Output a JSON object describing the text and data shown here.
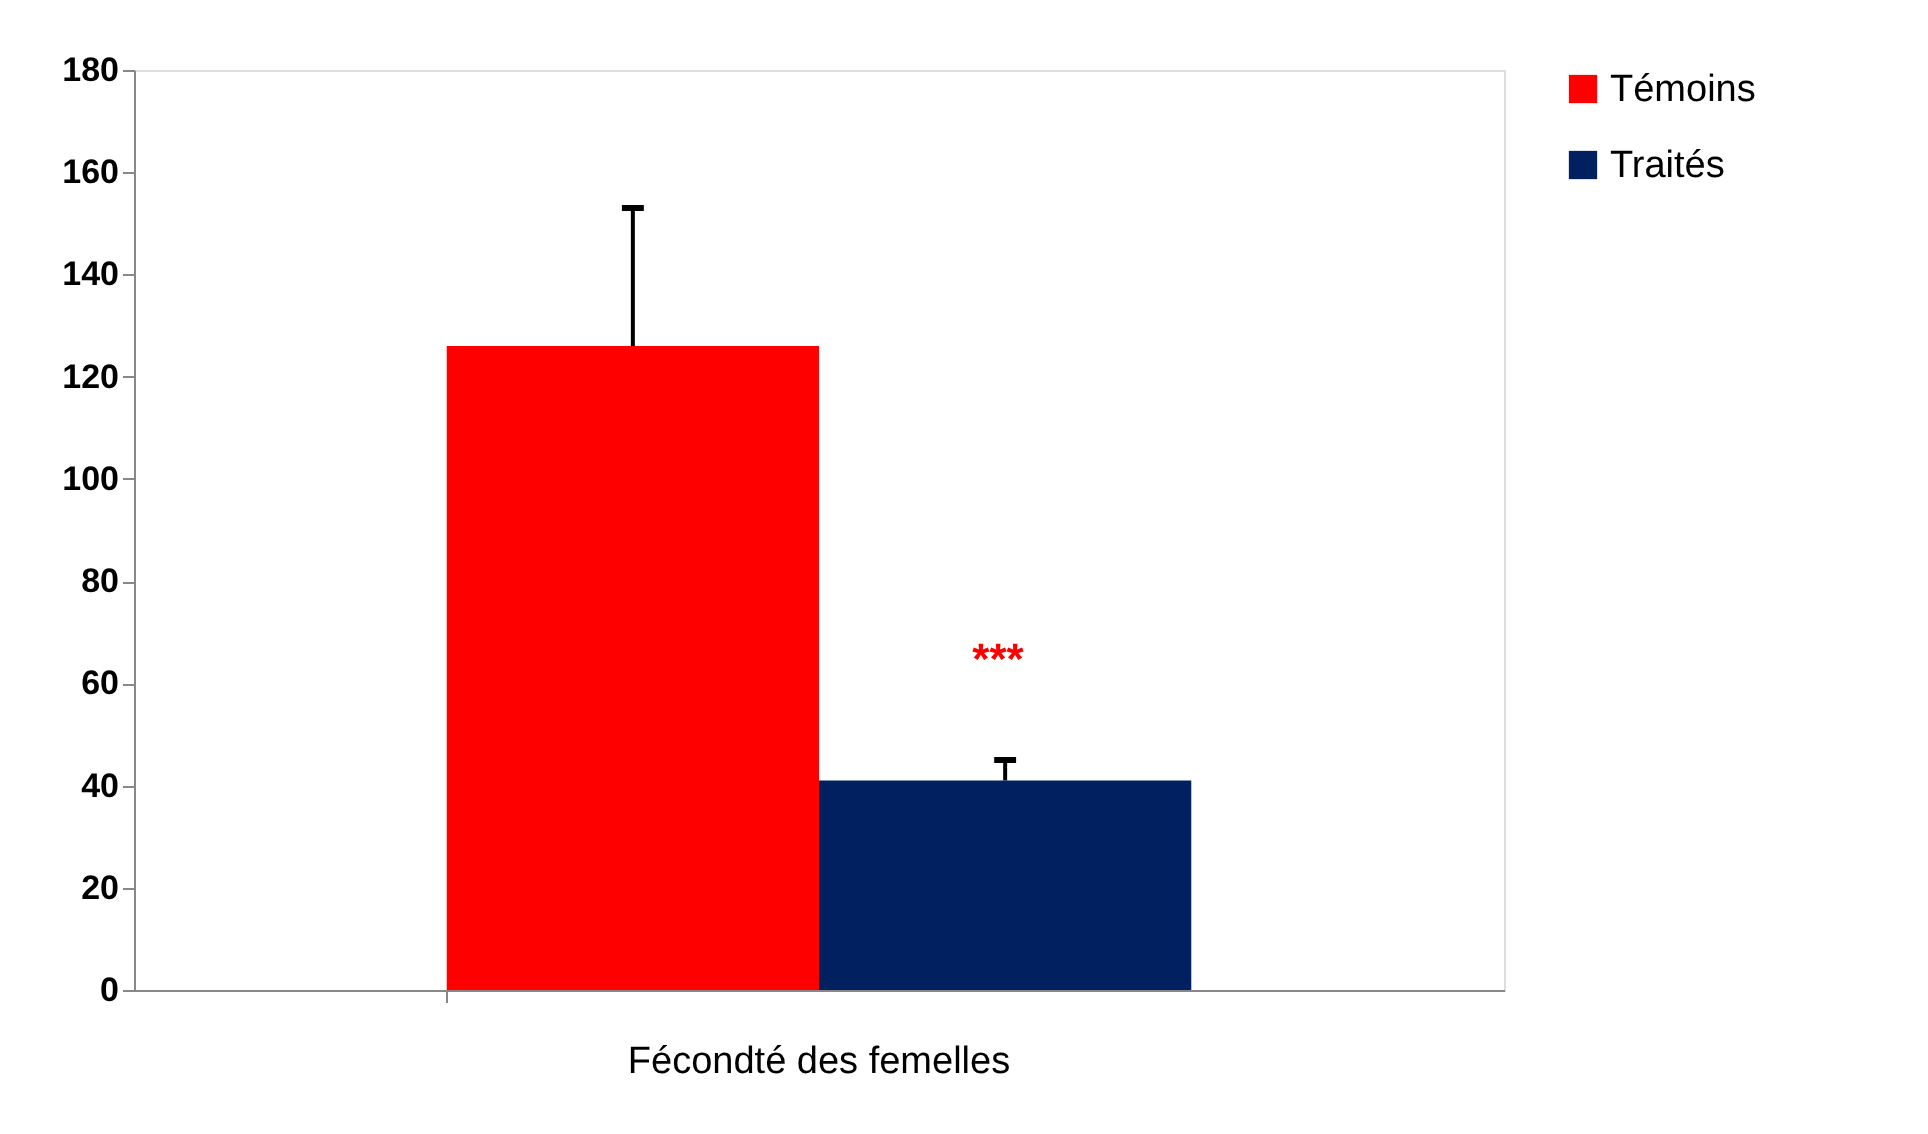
{
  "chart_data": {
    "type": "bar",
    "categories": [
      "Fécondté des femelles"
    ],
    "series": [
      {
        "name": "Témoins",
        "color": "#ff0000",
        "values": [
          126
        ],
        "errors": [
          [
            126,
            153
          ]
        ]
      },
      {
        "name": "Traités",
        "color": "#002060",
        "values": [
          41
        ],
        "errors": [
          [
            41,
            45
          ]
        ]
      }
    ],
    "ylim": [
      0,
      180
    ],
    "yticks": [
      0,
      20,
      40,
      60,
      80,
      100,
      120,
      140,
      160,
      180
    ],
    "grid": false,
    "legend": "top right",
    "annotations": [
      "***"
    ]
  }
}
